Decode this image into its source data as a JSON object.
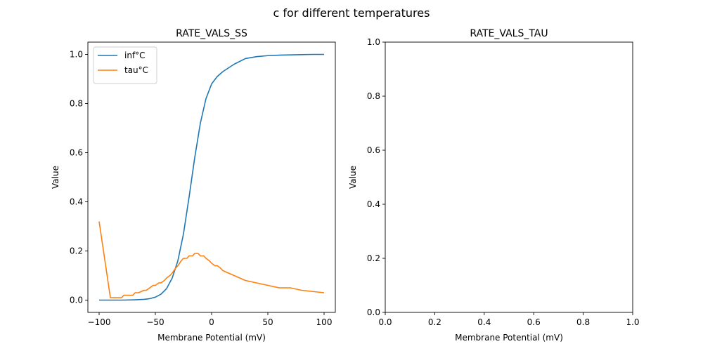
{
  "figure": {
    "suptitle": "c for different temperatures"
  },
  "chart_data": [
    {
      "type": "line",
      "title": "RATE_VALS_SS",
      "xlabel": "Membrane Potential (mV)",
      "ylabel": "Value",
      "xlim": [
        -110,
        110
      ],
      "ylim": [
        -0.05,
        1.05
      ],
      "xticks": [
        -100,
        -50,
        0,
        50,
        100
      ],
      "xtick_labels": [
        "−100",
        "−50",
        "0",
        "50",
        "100"
      ],
      "yticks": [
        0.0,
        0.2,
        0.4,
        0.6,
        0.8,
        1.0
      ],
      "ytick_labels": [
        "0.0",
        "0.2",
        "0.4",
        "0.6",
        "0.8",
        "1.0"
      ],
      "grid": false,
      "legend": "upper left",
      "series": [
        {
          "name": "inf°C",
          "color": "#1f77b4",
          "x": [
            -100,
            -90,
            -80,
            -70,
            -60,
            -55,
            -50,
            -45,
            -40,
            -35,
            -30,
            -25,
            -20,
            -15,
            -10,
            -5,
            0,
            5,
            10,
            20,
            30,
            40,
            50,
            60,
            70,
            80,
            90,
            100
          ],
          "y": [
            0.0,
            0.0,
            0.0,
            0.001,
            0.003,
            0.006,
            0.012,
            0.024,
            0.047,
            0.09,
            0.16,
            0.27,
            0.42,
            0.58,
            0.72,
            0.82,
            0.88,
            0.91,
            0.93,
            0.96,
            0.983,
            0.991,
            0.995,
            0.997,
            0.998,
            0.999,
            1.0,
            1.0
          ]
        },
        {
          "name": "tau°C",
          "color": "#ff7f0e",
          "x": [
            -100,
            -90,
            -80,
            -78,
            -70,
            -68,
            -65,
            -60,
            -58,
            -55,
            -52,
            -50,
            -47,
            -45,
            -42,
            -40,
            -37,
            -35,
            -32,
            -30,
            -27,
            -25,
            -22,
            -20,
            -17,
            -15,
            -12,
            -10,
            -7,
            -5,
            -2,
            0,
            3,
            5,
            8,
            10,
            20,
            30,
            40,
            50,
            60,
            70,
            80,
            90,
            100
          ],
          "y": [
            0.32,
            0.01,
            0.01,
            0.02,
            0.02,
            0.03,
            0.03,
            0.04,
            0.04,
            0.05,
            0.06,
            0.06,
            0.07,
            0.07,
            0.08,
            0.09,
            0.1,
            0.11,
            0.13,
            0.14,
            0.16,
            0.17,
            0.17,
            0.18,
            0.18,
            0.19,
            0.19,
            0.18,
            0.18,
            0.17,
            0.16,
            0.15,
            0.14,
            0.14,
            0.13,
            0.12,
            0.1,
            0.08,
            0.07,
            0.06,
            0.05,
            0.05,
            0.04,
            0.035,
            0.03
          ]
        }
      ]
    },
    {
      "type": "line",
      "title": "RATE_VALS_TAU",
      "xlabel": "Membrane Potential (mV)",
      "ylabel": "Value",
      "xlim": [
        0,
        1
      ],
      "ylim": [
        0,
        1
      ],
      "xticks": [
        0,
        0.2,
        0.4,
        0.6,
        0.8,
        1.0
      ],
      "xtick_labels": [
        "0.0",
        "0.2",
        "0.4",
        "0.6",
        "0.8",
        "1.0"
      ],
      "yticks": [
        0,
        0.2,
        0.4,
        0.6,
        0.8,
        1.0
      ],
      "ytick_labels": [
        "0.0",
        "0.2",
        "0.4",
        "0.6",
        "0.8",
        "1.0"
      ],
      "grid": false,
      "series": []
    }
  ]
}
